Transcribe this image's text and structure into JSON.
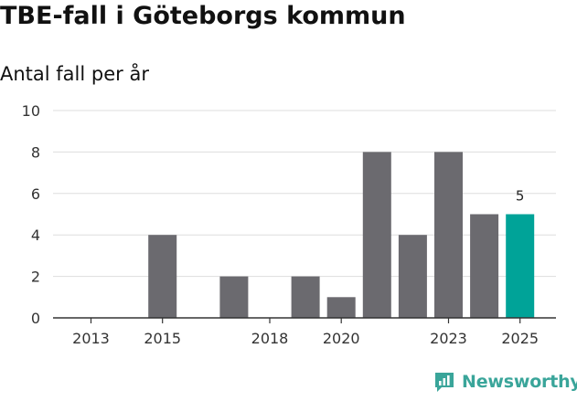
{
  "title": "TBE-fall i Göteborgs kommun",
  "subtitle": "Antal fall per år",
  "brand": {
    "name": "Newsworthy",
    "color": "#3aa59a"
  },
  "colors": {
    "bar_default": "#6b6a6f",
    "bar_highlight": "#00a398",
    "grid": "#dddddd",
    "axis": "#333333",
    "tick_text": "#333333"
  },
  "chart_data": {
    "type": "bar",
    "categories": [
      "2013",
      "2014",
      "2015",
      "2016",
      "2017",
      "2018",
      "2019",
      "2020",
      "2021",
      "2022",
      "2023",
      "2024",
      "2025"
    ],
    "values": [
      0,
      0,
      4,
      0,
      2,
      0,
      2,
      1,
      8,
      4,
      8,
      5,
      5
    ],
    "x_tick_labels": [
      "2013",
      "2015",
      "2018",
      "2020",
      "2023",
      "2025"
    ],
    "y_ticks": [
      0,
      2,
      4,
      6,
      8,
      10
    ],
    "ylim": [
      0,
      10
    ],
    "highlight_category": "2025",
    "data_labels": [
      {
        "category": "2025",
        "value": "5"
      }
    ],
    "grid": true,
    "title": "TBE-fall i Göteborgs kommun",
    "ylabel": "Antal fall per år",
    "xlabel": ""
  }
}
